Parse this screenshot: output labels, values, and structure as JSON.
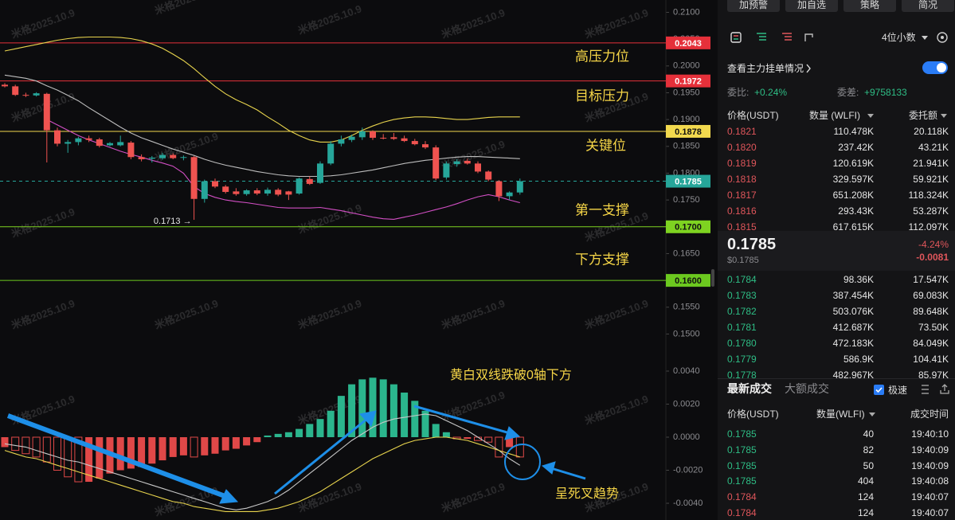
{
  "chart_data": {
    "type": "candlestick",
    "watermark": "米格2025.10.9",
    "price_panel": {
      "ylim": [
        0.1465,
        0.2123
      ],
      "yticks": [
        {
          "value": 0.21,
          "label": "0.2100"
        },
        {
          "value": 0.205,
          "label": "0.2050"
        },
        {
          "value": 0.2,
          "label": "0.2000"
        },
        {
          "value": 0.195,
          "label": "0.1950"
        },
        {
          "value": 0.19,
          "label": "0.1900"
        },
        {
          "value": 0.185,
          "label": "0.1850"
        },
        {
          "value": 0.18,
          "label": "0.1800"
        },
        {
          "value": 0.175,
          "label": "0.1750"
        },
        {
          "value": 0.17,
          "label": "0.1700"
        },
        {
          "value": 0.165,
          "label": "0.1650"
        },
        {
          "value": 0.16,
          "label": "0.1600"
        },
        {
          "value": 0.155,
          "label": "0.1550"
        },
        {
          "value": 0.15,
          "label": "0.1500"
        }
      ],
      "colors": {
        "up": "#26a69a",
        "down": "#ef5350"
      },
      "candles": {
        "open": [
          0.1965,
          0.1962,
          0.1946,
          0.1945,
          0.1948,
          0.188,
          0.1855,
          0.1858,
          0.1865,
          0.1863,
          0.1852,
          0.1852,
          0.1857,
          0.183,
          0.1827,
          0.1828,
          0.1834,
          0.1829,
          0.183,
          0.1752,
          0.1785,
          0.1775,
          0.1766,
          0.1761,
          0.1768,
          0.1762,
          0.1769,
          0.1766,
          0.1762,
          0.1789,
          0.1782,
          0.1818,
          0.1855,
          0.1862,
          0.1867,
          0.1878,
          0.1866,
          0.1867,
          0.1865,
          0.186,
          0.1854,
          0.1848,
          0.1792,
          0.1817,
          0.1823,
          0.1818,
          0.1803,
          0.1785,
          0.1757,
          0.1764
        ],
        "high": [
          0.1968,
          0.1965,
          0.195,
          0.1951,
          0.195,
          0.1885,
          0.1862,
          0.1868,
          0.187,
          0.1866,
          0.1858,
          0.187,
          0.186,
          0.1835,
          0.1832,
          0.1838,
          0.1837,
          0.1833,
          0.1832,
          0.1788,
          0.179,
          0.1778,
          0.1772,
          0.177,
          0.1772,
          0.1773,
          0.1772,
          0.1767,
          0.1792,
          0.1794,
          0.1822,
          0.186,
          0.187,
          0.1872,
          0.1885,
          0.188,
          0.1873,
          0.1875,
          0.187,
          0.1864,
          0.186,
          0.1852,
          0.1822,
          0.1826,
          0.1827,
          0.1822,
          0.1805,
          0.1787,
          0.1766,
          0.179
        ],
        "low": [
          0.196,
          0.1944,
          0.1942,
          0.1943,
          0.182,
          0.185,
          0.1838,
          0.1852,
          0.1858,
          0.1848,
          0.185,
          0.185,
          0.1826,
          0.1822,
          0.182,
          0.1825,
          0.1826,
          0.1824,
          0.1713,
          0.1745,
          0.1772,
          0.1762,
          0.1758,
          0.1758,
          0.1759,
          0.1758,
          0.1757,
          0.175,
          0.176,
          0.1778,
          0.178,
          0.1815,
          0.185,
          0.1858,
          0.1862,
          0.1862,
          0.1863,
          0.1862,
          0.1858,
          0.1852,
          0.1845,
          0.1787,
          0.1788,
          0.1812,
          0.1816,
          0.18,
          0.1785,
          0.1748,
          0.175,
          0.176
        ],
        "close": [
          0.1962,
          0.1946,
          0.1945,
          0.1949,
          0.188,
          0.1855,
          0.1858,
          0.1865,
          0.1862,
          0.1851,
          0.1856,
          0.1858,
          0.183,
          0.1826,
          0.1829,
          0.1834,
          0.1828,
          0.183,
          0.1752,
          0.1785,
          0.1775,
          0.1765,
          0.1761,
          0.1768,
          0.1762,
          0.1769,
          0.176,
          0.176,
          0.179,
          0.178,
          0.1818,
          0.1855,
          0.1863,
          0.1868,
          0.1878,
          0.1866,
          0.1865,
          0.1864,
          0.186,
          0.1854,
          0.1848,
          0.179,
          0.1818,
          0.1822,
          0.1818,
          0.1803,
          0.1788,
          0.1757,
          0.1764,
          0.1785
        ]
      },
      "lines": [
        {
          "color": "#e8d44d",
          "values": [
            0.2028,
            0.2032,
            0.2036,
            0.204,
            0.2044,
            0.2048,
            0.2051,
            0.2053,
            0.2054,
            0.2054,
            0.2054,
            0.2053,
            0.2051,
            0.2047,
            0.2041,
            0.2033,
            0.2022,
            0.201,
            0.1995,
            0.1978,
            0.1962,
            0.1948,
            0.1937,
            0.1928,
            0.1918,
            0.1905,
            0.1893,
            0.188,
            0.187,
            0.1862,
            0.1858,
            0.1858,
            0.1862,
            0.187,
            0.188,
            0.1888,
            0.1895,
            0.19,
            0.1903,
            0.1905,
            0.1905,
            0.1904,
            0.1902,
            0.19,
            0.19,
            0.1902,
            0.1904,
            0.1905,
            0.1905,
            0.1905
          ]
        },
        {
          "color": "#bdbdbd",
          "values": [
            0.1983,
            0.198,
            0.1977,
            0.1972,
            0.1963,
            0.1955,
            0.1945,
            0.1935,
            0.1922,
            0.191,
            0.1898,
            0.1886,
            0.1875,
            0.1866,
            0.1859,
            0.1852,
            0.1845,
            0.1839,
            0.1833,
            0.1826,
            0.182,
            0.1815,
            0.1811,
            0.1807,
            0.1803,
            0.18,
            0.1797,
            0.1795,
            0.1794,
            0.1794,
            0.1794,
            0.1795,
            0.1797,
            0.18,
            0.1803,
            0.1806,
            0.181,
            0.1814,
            0.1818,
            0.1821,
            0.1824,
            0.1826,
            0.1828,
            0.183,
            0.1831,
            0.1831,
            0.183,
            0.1829,
            0.1828,
            0.1827
          ]
        },
        {
          "color": "#d24fc4",
          "values": [
            null,
            null,
            null,
            null,
            0.19,
            0.189,
            0.188,
            0.187,
            0.1862,
            0.1855,
            0.1848,
            0.1841,
            0.1835,
            0.183,
            0.1824,
            0.1819,
            0.1813,
            0.18,
            0.1775,
            0.1762,
            0.1755,
            0.175,
            0.1747,
            0.1745,
            0.1742,
            0.1739,
            0.1736,
            0.1735,
            0.1735,
            0.1735,
            0.1736,
            0.1733,
            0.173,
            0.1726,
            0.1722,
            0.1718,
            0.1715,
            0.1714,
            0.1718,
            0.1722,
            0.1727,
            0.1732,
            0.1737,
            0.1743,
            0.175,
            0.1756,
            0.176,
            0.1756,
            0.175,
            0.1745
          ]
        }
      ],
      "levels": [
        {
          "value": 0.2043,
          "color": "#e5303a",
          "note": "高压力位"
        },
        {
          "value": 0.1972,
          "color": "#e5303a",
          "note": "目标压力"
        },
        {
          "value": 0.1878,
          "color": "#f2d94e",
          "note": "关键位"
        },
        {
          "value": 0.17,
          "label": "0.1700",
          "color": "#7ed321",
          "note": "第一支撑"
        },
        {
          "value": 0.16,
          "label": "0.1600",
          "color": "#6cc91f",
          "note": "下方支撑"
        }
      ],
      "last_price": {
        "value": 0.1785,
        "color": "#26a69a"
      },
      "low_marker": "0.1713 →"
    },
    "macd_panel": {
      "ylim": [
        -0.005,
        0.0048
      ],
      "yticks": [
        {
          "value": 0.004,
          "label": "0.0040"
        },
        {
          "value": 0.002,
          "label": "0.0020"
        },
        {
          "value": 0,
          "label": "0.0000"
        },
        {
          "value": -0.002,
          "label": "-0.0020"
        },
        {
          "value": -0.004,
          "label": "-0.0040"
        }
      ],
      "colors": {
        "up": "#2bb58d",
        "down": "#e04848"
      },
      "histogram": [
        -0.0006,
        -0.0008,
        -0.001,
        -0.0012,
        -0.0015,
        -0.002,
        -0.0024,
        -0.0027,
        -0.0027,
        -0.0025,
        -0.0022,
        -0.002,
        -0.0019,
        -0.0018,
        -0.0016,
        -0.0014,
        -0.0012,
        -0.0011,
        -0.0012,
        -0.0011,
        -0.001,
        -0.0008,
        -0.0007,
        -0.0005,
        -0.0003,
        0.0001,
        0.0002,
        0.0003,
        0.0005,
        0.0008,
        0.0011,
        0.0016,
        0.0025,
        0.0032,
        0.0035,
        0.0036,
        0.0035,
        0.0032,
        0.0027,
        0.0022,
        0.0016,
        0.0008,
        0.0003,
        -0.0001,
        -0.0001,
        -0.0002,
        -0.0003,
        -0.0012,
        -0.0006,
        -0.0012
      ],
      "lines": [
        {
          "color": "#c8c8c8",
          "values": [
            -0.0004,
            -0.0005,
            -0.0006,
            -0.0008,
            -0.001,
            -0.0012,
            -0.0014,
            -0.0015,
            -0.0017,
            -0.0019,
            -0.0021,
            -0.0023,
            -0.0025,
            -0.0027,
            -0.0029,
            -0.0031,
            -0.0033,
            -0.0035,
            -0.0037,
            -0.0039,
            -0.0041,
            -0.0043,
            -0.0044,
            -0.0043,
            -0.0041,
            -0.0039,
            -0.0036,
            -0.0032,
            -0.0027,
            -0.0022,
            -0.0017,
            -0.0012,
            -0.0007,
            -0.0002,
            0.0002,
            0.0006,
            0.0009,
            0.0011,
            0.0012,
            0.0013,
            0.0014,
            0.0013,
            0.001,
            0.0007,
            0.0004,
            0,
            -0.0004,
            -0.0008,
            -0.0013,
            -0.0017
          ]
        },
        {
          "color": "#e8d44d",
          "values": [
            -0.0008,
            -0.001,
            -0.0012,
            -0.0013,
            -0.0015,
            -0.0017,
            -0.0019,
            -0.0021,
            -0.0023,
            -0.0025,
            -0.0027,
            -0.0029,
            -0.0031,
            -0.0033,
            -0.0035,
            -0.0037,
            -0.0039,
            -0.004,
            -0.0042,
            -0.0043,
            -0.0044,
            -0.0045,
            -0.0045,
            -0.0045,
            -0.0045,
            -0.0044,
            -0.0043,
            -0.0041,
            -0.0039,
            -0.0036,
            -0.0033,
            -0.0029,
            -0.0025,
            -0.0021,
            -0.0017,
            -0.0013,
            -0.001,
            -0.0007,
            -0.0004,
            -0.0002,
            -0.0001,
            0,
            0,
            -0.0001,
            -0.0002,
            -0.0004,
            -0.0006,
            -0.0008,
            -0.001,
            -0.0012
          ]
        }
      ],
      "annotations": [
        "黄白双线跌破0轴下方",
        "呈死叉趋势"
      ]
    }
  },
  "side_panel": {
    "buttons": [
      "加预警",
      "加自选",
      "策略",
      "简况"
    ],
    "precision": "4位小数",
    "main_orders": "查看主力挂单情况",
    "ratio": {
      "label": "委比:",
      "value": "+0.24%"
    },
    "diff": {
      "label": "委差:",
      "value": "+9758133"
    },
    "book_header": [
      "价格(USDT)",
      "数量 (WLFI)",
      "委托额"
    ],
    "ask_color": "#e0565b",
    "bid_color": "#2ebd85",
    "asks": [
      [
        "0.1821",
        "110.478K",
        "20.118K"
      ],
      [
        "0.1820",
        "237.42K",
        "43.21K"
      ],
      [
        "0.1819",
        "120.619K",
        "21.941K"
      ],
      [
        "0.1818",
        "329.597K",
        "59.921K"
      ],
      [
        "0.1817",
        "651.208K",
        "118.324K"
      ],
      [
        "0.1816",
        "293.43K",
        "53.287K"
      ],
      [
        "0.1815",
        "617.615K",
        "112.097K"
      ]
    ],
    "mid": {
      "price": "0.1785",
      "usd": "$0.1785",
      "change_pct": "-4.24%",
      "change": "-0.0081"
    },
    "bids": [
      [
        "0.1784",
        "98.36K",
        "17.547K"
      ],
      [
        "0.1783",
        "387.454K",
        "69.083K"
      ],
      [
        "0.1782",
        "503.076K",
        "89.648K"
      ],
      [
        "0.1781",
        "412.687K",
        "73.50K"
      ],
      [
        "0.1780",
        "472.183K",
        "84.049K"
      ],
      [
        "0.1779",
        "586.9K",
        "104.41K"
      ],
      [
        "0.1778",
        "482.967K",
        "85.97K"
      ]
    ],
    "trade_tabs": [
      "最新成交",
      "大额成交"
    ],
    "fast": "极速",
    "trade_header": [
      "价格(USDT)",
      "数量(WLFI)",
      "成交时间"
    ],
    "trades": [
      {
        "price": "0.1785",
        "qty": "40",
        "time": "19:40:10",
        "color": "#2ebd85"
      },
      {
        "price": "0.1785",
        "qty": "82",
        "time": "19:40:09",
        "color": "#2ebd85"
      },
      {
        "price": "0.1785",
        "qty": "50",
        "time": "19:40:09",
        "color": "#2ebd85"
      },
      {
        "price": "0.1785",
        "qty": "404",
        "time": "19:40:08",
        "color": "#2ebd85"
      },
      {
        "price": "0.1784",
        "qty": "124",
        "time": "19:40:07",
        "color": "#e0565b"
      },
      {
        "price": "0.1784",
        "qty": "124",
        "time": "19:40:07",
        "color": "#e0565b"
      }
    ]
  }
}
